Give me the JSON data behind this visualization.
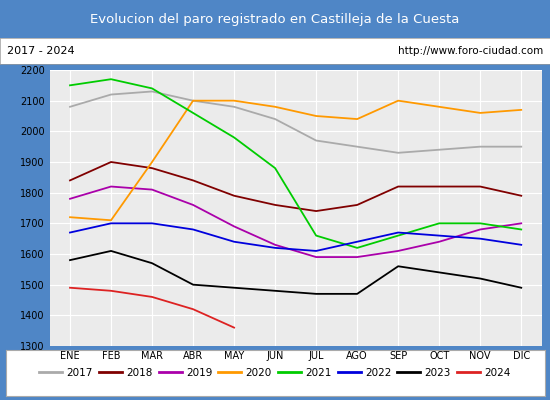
{
  "title": "Evolucion del paro registrado en Castilleja de la Cuesta",
  "subtitle_left": "2017 - 2024",
  "subtitle_right": "http://www.foro-ciudad.com",
  "title_bg_color": "#4f86c6",
  "title_text_color": "white",
  "plot_bg_color": "#ebebeb",
  "grid_color": "#ffffff",
  "x_labels": [
    "ENE",
    "FEB",
    "MAR",
    "ABR",
    "MAY",
    "JUN",
    "JUL",
    "AGO",
    "SEP",
    "OCT",
    "NOV",
    "DIC"
  ],
  "ylim": [
    1300,
    2200
  ],
  "yticks": [
    1300,
    1400,
    1500,
    1600,
    1700,
    1800,
    1900,
    2000,
    2100,
    2200
  ],
  "series": {
    "2017": {
      "color": "#aaaaaa",
      "data": [
        2080,
        2120,
        2130,
        2100,
        2080,
        2040,
        1970,
        1950,
        1930,
        1940,
        1950,
        1950
      ]
    },
    "2018": {
      "color": "#800000",
      "data": [
        1840,
        1900,
        1880,
        1840,
        1790,
        1760,
        1740,
        1760,
        1820,
        1820,
        1820,
        1790
      ]
    },
    "2019": {
      "color": "#aa00aa",
      "data": [
        1780,
        1820,
        1810,
        1760,
        1690,
        1630,
        1590,
        1590,
        1610,
        1640,
        1680,
        1700
      ]
    },
    "2020": {
      "color": "#ff9900",
      "data": [
        1720,
        1710,
        1900,
        2100,
        2100,
        2080,
        2050,
        2040,
        2100,
        2080,
        2060,
        2070
      ]
    },
    "2021": {
      "color": "#00cc00",
      "data": [
        2150,
        2170,
        2140,
        2060,
        1980,
        1880,
        1660,
        1620,
        1660,
        1700,
        1700,
        1680
      ]
    },
    "2022": {
      "color": "#0000dd",
      "data": [
        1670,
        1700,
        1700,
        1680,
        1640,
        1620,
        1610,
        1640,
        1670,
        1660,
        1650,
        1630
      ]
    },
    "2023": {
      "color": "#000000",
      "data": [
        1580,
        1610,
        1570,
        1500,
        1490,
        1480,
        1470,
        1470,
        1560,
        1540,
        1520,
        1490
      ]
    },
    "2024": {
      "color": "#dd2222",
      "data": [
        1490,
        1480,
        1460,
        1420,
        1360,
        null,
        null,
        null,
        null,
        null,
        null,
        null
      ]
    }
  },
  "legend_order": [
    "2017",
    "2018",
    "2019",
    "2020",
    "2021",
    "2022",
    "2023",
    "2024"
  ],
  "border_color": "#4f86c6"
}
